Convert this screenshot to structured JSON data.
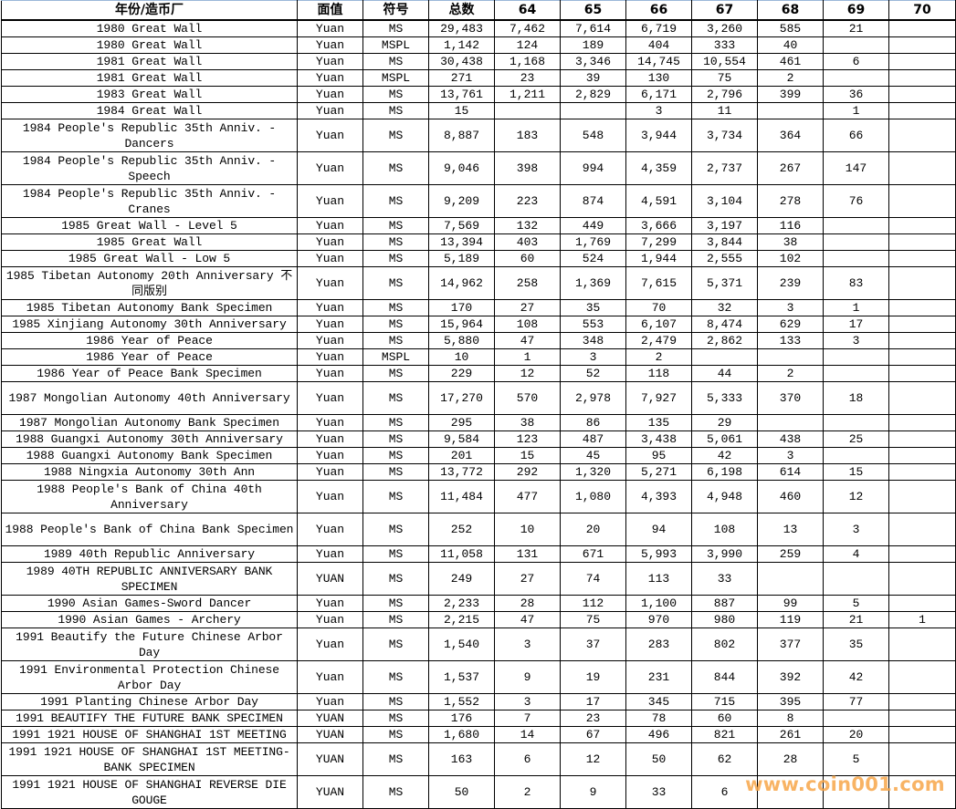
{
  "table": {
    "headers": [
      "年份/造币厂",
      "面值",
      "符号",
      "总数",
      "64",
      "65",
      "66",
      "67",
      "68",
      "69",
      "70"
    ],
    "rows": [
      [
        "1980 Great Wall",
        "Yuan",
        "MS",
        "29,483",
        "7,462",
        "7,614",
        "6,719",
        "3,260",
        "585",
        "21",
        ""
      ],
      [
        "1980 Great Wall",
        "Yuan",
        "MSPL",
        "1,142",
        "124",
        "189",
        "404",
        "333",
        "40",
        "",
        ""
      ],
      [
        "1981 Great Wall",
        "Yuan",
        "MS",
        "30,438",
        "1,168",
        "3,346",
        "14,745",
        "10,554",
        "461",
        "6",
        ""
      ],
      [
        "1981 Great Wall",
        "Yuan",
        "MSPL",
        "271",
        "23",
        "39",
        "130",
        "75",
        "2",
        "",
        ""
      ],
      [
        "1983 Great Wall",
        "Yuan",
        "MS",
        "13,761",
        "1,211",
        "2,829",
        "6,171",
        "2,796",
        "399",
        "36",
        ""
      ],
      [
        "1984 Great Wall",
        "Yuan",
        "MS",
        "15",
        "",
        "",
        "3",
        "11",
        "",
        "1",
        ""
      ],
      [
        "1984 People's Republic 35th Anniv. - Dancers",
        "Yuan",
        "MS",
        "8,887",
        "183",
        "548",
        "3,944",
        "3,734",
        "364",
        "66",
        ""
      ],
      [
        "1984 People's Republic 35th Anniv. - Speech",
        "Yuan",
        "MS",
        "9,046",
        "398",
        "994",
        "4,359",
        "2,737",
        "267",
        "147",
        ""
      ],
      [
        "1984 People's Republic 35th Anniv. - Cranes",
        "Yuan",
        "MS",
        "9,209",
        "223",
        "874",
        "4,591",
        "3,104",
        "278",
        "76",
        ""
      ],
      [
        "1985 Great Wall - Level 5",
        "Yuan",
        "MS",
        "7,569",
        "132",
        "449",
        "3,666",
        "3,197",
        "116",
        "",
        ""
      ],
      [
        "1985 Great Wall",
        "Yuan",
        "MS",
        "13,394",
        "403",
        "1,769",
        "7,299",
        "3,844",
        "38",
        "",
        ""
      ],
      [
        "1985 Great Wall - Low 5",
        "Yuan",
        "MS",
        "5,189",
        "60",
        "524",
        "1,944",
        "2,555",
        "102",
        "",
        ""
      ],
      [
        "1985 Tibetan Autonomy 20th Anniversary 不同版别",
        "Yuan",
        "MS",
        "14,962",
        "258",
        "1,369",
        "7,615",
        "5,371",
        "239",
        "83",
        ""
      ],
      [
        "1985 Tibetan Autonomy Bank Specimen",
        "Yuan",
        "MS",
        "170",
        "27",
        "35",
        "70",
        "32",
        "3",
        "1",
        ""
      ],
      [
        "1985 Xinjiang Autonomy 30th Anniversary",
        "Yuan",
        "MS",
        "15,964",
        "108",
        "553",
        "6,107",
        "8,474",
        "629",
        "17",
        ""
      ],
      [
        "1986 Year of Peace",
        "Yuan",
        "MS",
        "5,880",
        "47",
        "348",
        "2,479",
        "2,862",
        "133",
        "3",
        ""
      ],
      [
        "1986 Year of Peace",
        "Yuan",
        "MSPL",
        "10",
        "1",
        "3",
        "2",
        "",
        "",
        "",
        ""
      ],
      [
        "1986 Year of Peace Bank Specimen",
        "Yuan",
        "MS",
        "229",
        "12",
        "52",
        "118",
        "44",
        "2",
        "",
        ""
      ],
      [
        "1987 Mongolian Autonomy 40th Anniversary",
        "Yuan",
        "MS",
        "17,270",
        "570",
        "2,978",
        "7,927",
        "5,333",
        "370",
        "18",
        ""
      ],
      [
        "1987 Mongolian Autonomy Bank Specimen",
        "Yuan",
        "MS",
        "295",
        "38",
        "86",
        "135",
        "29",
        "",
        "",
        ""
      ],
      [
        "1988 Guangxi Autonomy 30th Anniversary",
        "Yuan",
        "MS",
        "9,584",
        "123",
        "487",
        "3,438",
        "5,061",
        "438",
        "25",
        ""
      ],
      [
        "1988 Guangxi Autonomy Bank Specimen",
        "Yuan",
        "MS",
        "201",
        "15",
        "45",
        "95",
        "42",
        "3",
        "",
        ""
      ],
      [
        "1988 Ningxia Autonomy 30th Ann",
        "Yuan",
        "MS",
        "13,772",
        "292",
        "1,320",
        "5,271",
        "6,198",
        "614",
        "15",
        ""
      ],
      [
        "1988 People's Bank of China 40th Anniversary",
        "Yuan",
        "MS",
        "11,484",
        "477",
        "1,080",
        "4,393",
        "4,948",
        "460",
        "12",
        ""
      ],
      [
        "1988 People's Bank of China Bank Specimen",
        "Yuan",
        "MS",
        "252",
        "10",
        "20",
        "94",
        "108",
        "13",
        "3",
        ""
      ],
      [
        "1989 40th Republic Anniversary",
        "Yuan",
        "MS",
        "11,058",
        "131",
        "671",
        "5,993",
        "3,990",
        "259",
        "4",
        ""
      ],
      [
        "1989 40TH REPUBLIC ANNIVERSARY BANK SPECIMEN",
        "YUAN",
        "MS",
        "249",
        "27",
        "74",
        "113",
        "33",
        "",
        "",
        ""
      ],
      [
        "1990 Asian Games-Sword Dancer",
        "Yuan",
        "MS",
        "2,233",
        "28",
        "112",
        "1,100",
        "887",
        "99",
        "5",
        ""
      ],
      [
        "1990 Asian Games - Archery",
        "Yuan",
        "MS",
        "2,215",
        "47",
        "75",
        "970",
        "980",
        "119",
        "21",
        "1"
      ],
      [
        "1991 Beautify the Future Chinese Arbor Day",
        "Yuan",
        "MS",
        "1,540",
        "3",
        "37",
        "283",
        "802",
        "377",
        "35",
        ""
      ],
      [
        "1991 Environmental Protection Chinese Arbor Day",
        "Yuan",
        "MS",
        "1,537",
        "9",
        "19",
        "231",
        "844",
        "392",
        "42",
        ""
      ],
      [
        "1991 Planting Chinese Arbor Day",
        "Yuan",
        "MS",
        "1,552",
        "3",
        "17",
        "345",
        "715",
        "395",
        "77",
        ""
      ],
      [
        "1991 BEAUTIFY THE FUTURE BANK SPECIMEN",
        "YUAN",
        "MS",
        "176",
        "7",
        "23",
        "78",
        "60",
        "8",
        "",
        ""
      ],
      [
        "1991 1921 HOUSE OF SHANGHAI 1ST MEETING",
        "YUAN",
        "MS",
        "1,680",
        "14",
        "67",
        "496",
        "821",
        "261",
        "20",
        ""
      ],
      [
        "1991 1921 HOUSE OF SHANGHAI 1ST MEETING-BANK SPECIMEN",
        "YUAN",
        "MS",
        "163",
        "6",
        "12",
        "50",
        "62",
        "28",
        "5",
        ""
      ],
      [
        "1991 1921 HOUSE OF SHANGHAI REVERSE DIE GOUGE",
        "YUAN",
        "MS",
        "50",
        "2",
        "9",
        "33",
        "6",
        "",
        "",
        ""
      ]
    ]
  },
  "watermark": {
    "text": "www.coin001.com",
    "color": "#f7a64a"
  }
}
